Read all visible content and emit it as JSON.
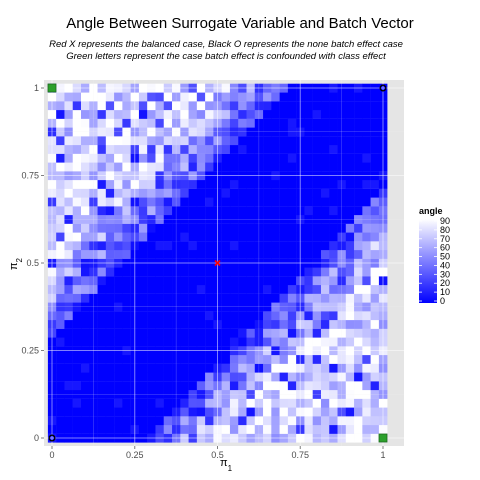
{
  "chart_data": {
    "type": "heatmap",
    "title": "Angle Between Surrogate Variable and Batch Vector",
    "subtitle_lines": [
      "Red X represents the balanced case, Black O represents the none batch effect case",
      "Green letters represent the case batch effect is confounded with class effect"
    ],
    "xlabel": {
      "base": "π",
      "sub": "1"
    },
    "ylabel": {
      "base": "π",
      "sub": "2"
    },
    "xlim": [
      0,
      1
    ],
    "ylim": [
      0,
      1
    ],
    "x_ticks": [
      {
        "value": 0,
        "label": "0"
      },
      {
        "value": 0.25,
        "label": "0.25"
      },
      {
        "value": 0.5,
        "label": "0.5"
      },
      {
        "value": 0.75,
        "label": "0.75"
      },
      {
        "value": 1,
        "label": "1"
      }
    ],
    "y_ticks": [
      {
        "value": 0,
        "label": "0"
      },
      {
        "value": 0.25,
        "label": "0.25"
      },
      {
        "value": 0.5,
        "label": "0.5"
      },
      {
        "value": 0.75,
        "label": "0.75"
      },
      {
        "value": 1,
        "label": "1"
      }
    ],
    "grid_resolution": 41,
    "grid_step": 0.025,
    "fill_variable": "angle",
    "color_scale": {
      "low": "#0000ff",
      "high": "#ffffff",
      "min": 0,
      "max": 90
    },
    "legend": {
      "title": "angle",
      "placement": "right",
      "breaks": [
        "90",
        "80",
        "70",
        "60",
        "50",
        "40",
        "30",
        "20",
        "10",
        "0"
      ]
    },
    "field_description": "angle is near 0 along the diagonal band where pi1 is close to pi2 and increases toward 90 in the top-left and bottom-right corners",
    "markers": [
      {
        "type": "red-x",
        "x": 0.5,
        "y": 0.5,
        "color": "#ff0000"
      },
      {
        "type": "black-o",
        "x": 0,
        "y": 0,
        "color": "#000000"
      },
      {
        "type": "black-o",
        "x": 1,
        "y": 1,
        "color": "#000000"
      },
      {
        "type": "green-box",
        "x": 0,
        "y": 1,
        "color": "#2ca02c"
      },
      {
        "type": "green-box",
        "x": 1,
        "y": 0,
        "color": "#2ca02c"
      }
    ],
    "panel_background": "#e5e5e5"
  }
}
